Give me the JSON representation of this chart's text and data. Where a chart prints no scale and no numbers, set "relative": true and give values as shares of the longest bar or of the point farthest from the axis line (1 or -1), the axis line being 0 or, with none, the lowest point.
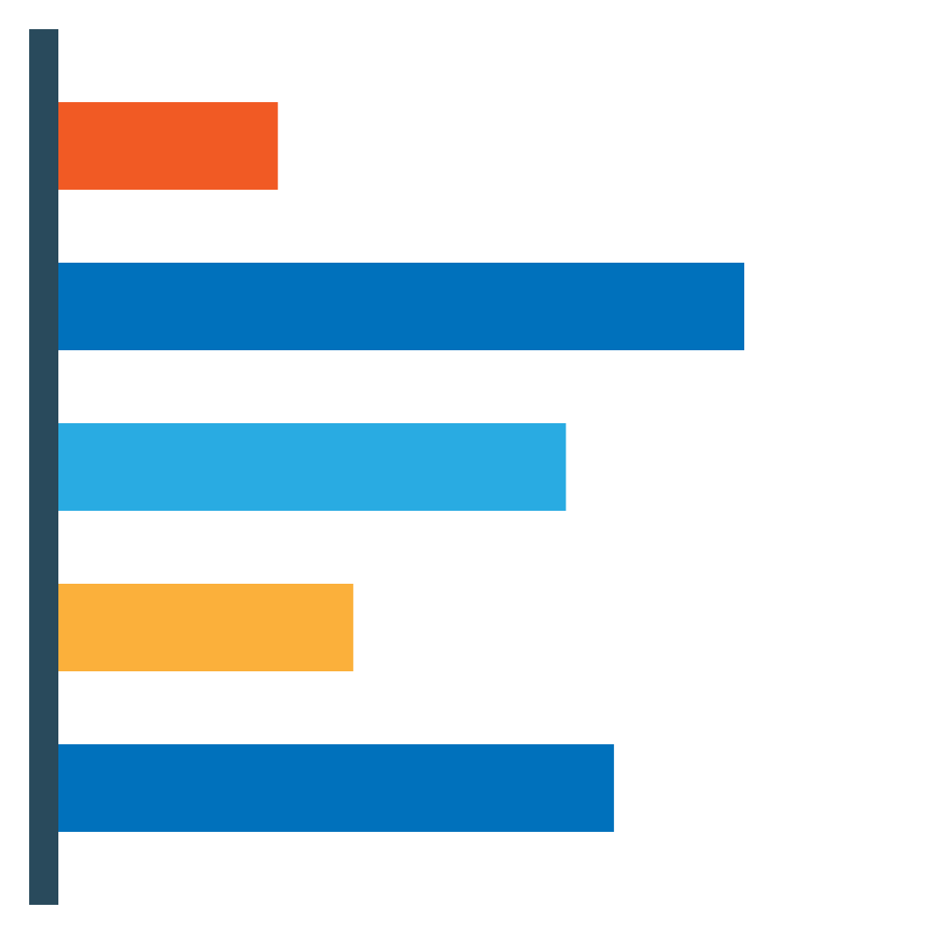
{
  "chart_data": {
    "type": "bar",
    "orientation": "horizontal",
    "relative": true,
    "categories": [
      null,
      null,
      null,
      null,
      null
    ],
    "values": [
      0.32,
      1,
      0.74,
      0.43,
      0.81
    ],
    "colors": [
      "#f15a24",
      "#0071bc",
      "#29abe2",
      "#fbb03b",
      "#0071bc"
    ]
  }
}
